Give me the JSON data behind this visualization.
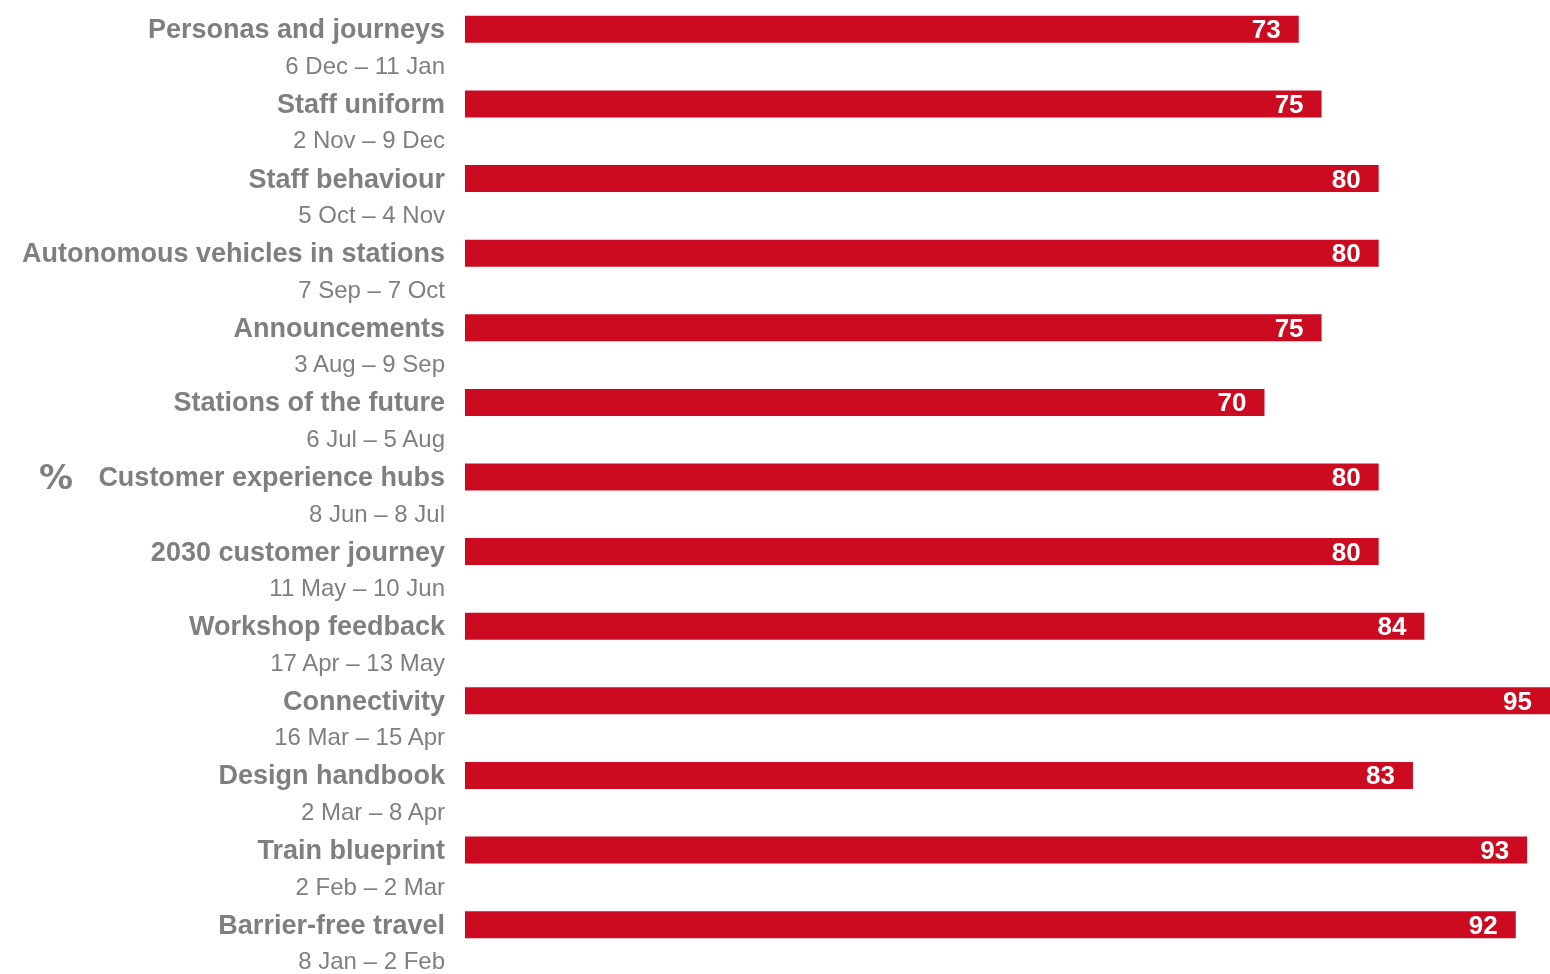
{
  "chart_data": {
    "type": "bar",
    "orientation": "horizontal",
    "ylabel": "%",
    "categories": [
      "Personas and journeys\n6 Dec – 11 Jan",
      "Staff uniform\n2 Nov – 9 Dec",
      "Staff behaviour\n5 Oct – 4 Nov",
      "Autonomous vehicles in stations\n7 Sep – 7 Oct",
      "Announcements\n3 Aug – 9 Sep",
      "Stations of the future\n6 Jul – 5 Aug",
      "Customer experience hubs\n8 Jun – 8 Jul",
      "2030 customer journey\n11 May – 10 Jun",
      "Workshop feedback\n17 Apr – 13 May",
      "Connectivity\n16 Mar – 15 Apr",
      "Design handbook\n2 Mar – 8 Apr",
      "Train blueprint\n2 Feb – 2 Mar",
      "Barrier-free travel\n8 Jan – 2 Feb"
    ],
    "values": [
      73,
      75,
      80,
      80,
      75,
      70,
      80,
      80,
      84,
      95,
      83,
      93,
      92
    ],
    "color": "#cc0a20",
    "xlim": [
      0,
      95
    ],
    "data_labels": true,
    "tick_labels": "y",
    "grid": false
  }
}
